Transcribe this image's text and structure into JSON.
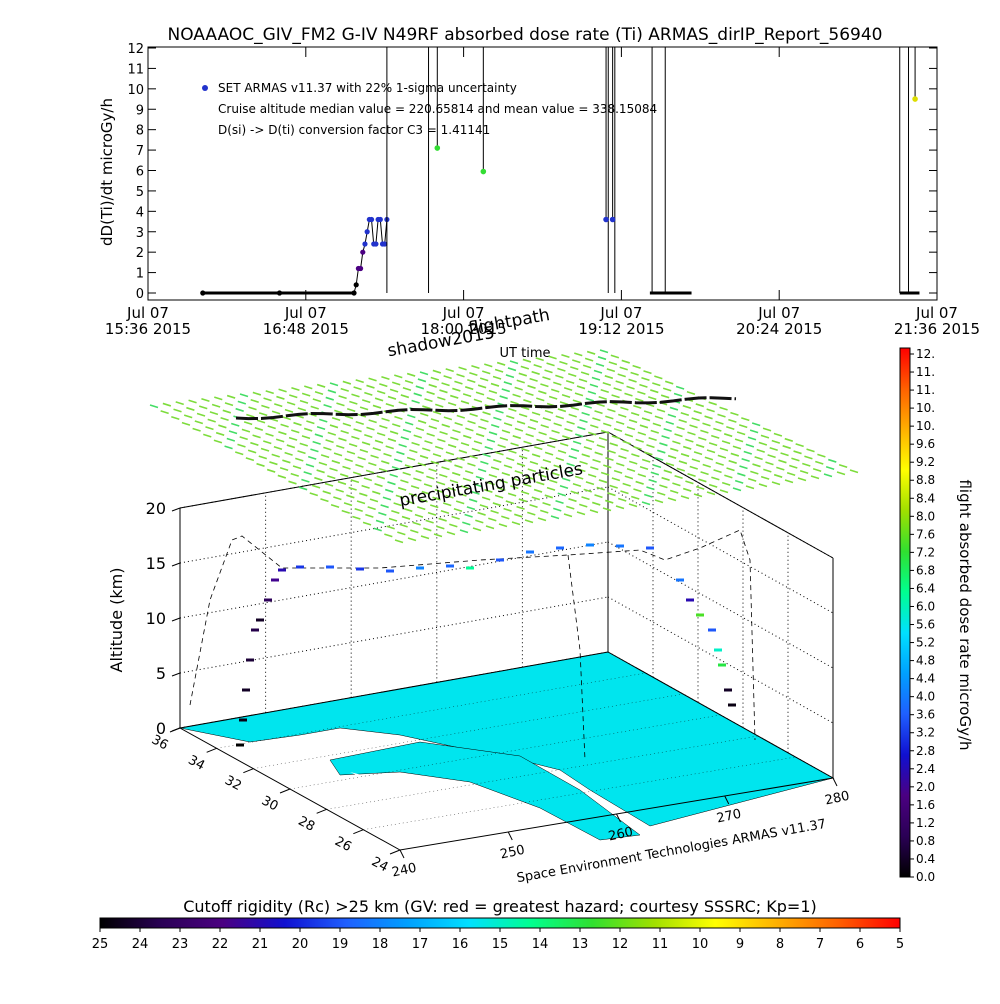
{
  "title": "NOAAAOC_GIV_FM2 G-IV    N49RF   absorbed dose rate (Ti) ARMAS_dirIP_Report_56940",
  "chart_data": [
    {
      "type": "line",
      "ylabel": "dD(Ti)/dt microGy/h",
      "xlabel": "UT time",
      "ylim": [
        0,
        12
      ],
      "yticks": [
        "0",
        "1",
        "2",
        "3",
        "4",
        "5",
        "6",
        "7",
        "8",
        "9",
        "10",
        "11",
        "12"
      ],
      "xticks": [
        {
          "t": 0,
          "l1": "Jul 07",
          "l2": "15:36 2015"
        },
        {
          "t": 72,
          "l1": "Jul 07",
          "l2": "16:48 2015"
        },
        {
          "t": 144,
          "l1": "Jul 07",
          "l2": "18:00 2015"
        },
        {
          "t": 216,
          "l1": "Jul 07",
          "l2": "19:12 2015"
        },
        {
          "t": 288,
          "l1": "Jul 07",
          "l2": "20:24 2015"
        },
        {
          "t": 360,
          "l1": "Jul 07",
          "l2": "21:36 2015"
        }
      ],
      "xlim_min": [
        0,
        360
      ],
      "legend": [
        "SET ARMAS v11.37 with 22% 1-sigma uncertainty",
        "Cruise altitude median value = 220.65814 and mean value = 338.15084",
        "D(si) -> D(ti) conversion factor C3 = 1.41141"
      ],
      "series_points": [
        [
          25,
          0
        ],
        [
          60,
          0
        ],
        [
          94,
          0
        ],
        [
          95,
          0.4
        ],
        [
          96,
          1.2
        ],
        [
          97,
          1.2
        ],
        [
          98,
          2.0
        ],
        [
          99,
          2.4
        ],
        [
          100,
          3.0
        ],
        [
          101,
          3.6
        ],
        [
          102,
          3.6
        ],
        [
          103,
          2.4
        ],
        [
          104,
          2.4
        ],
        [
          105,
          3.6
        ],
        [
          106,
          3.6
        ],
        [
          107,
          2.4
        ],
        [
          108,
          2.4
        ],
        [
          109,
          3.6
        ]
      ],
      "highlight_points": [
        {
          "t": 132,
          "y": 7.1,
          "color": "#33dd33"
        },
        {
          "t": 153,
          "y": 5.95,
          "color": "#33dd33"
        },
        {
          "t": 209,
          "y": 3.6,
          "color": "#2233cc"
        },
        {
          "t": 212,
          "y": 3.6,
          "color": "#2233cc"
        },
        {
          "t": 350,
          "y": 9.5,
          "color": "#dddd00"
        }
      ],
      "spike_times": [
        109,
        128,
        210,
        213,
        230,
        236,
        343,
        347
      ],
      "flat_segments": [
        [
          25,
          94
        ],
        [
          229,
          248
        ],
        [
          343,
          352
        ]
      ]
    },
    {
      "type": "scatter",
      "ylabel": "Altitude (km)",
      "zticks": [
        "0",
        "5",
        "10",
        "15",
        "20"
      ],
      "lat_ticks": [
        "36",
        "34",
        "32",
        "30",
        "28",
        "26",
        "24"
      ],
      "lon_ticks": [
        "240",
        "250",
        "260",
        "270",
        "280"
      ],
      "annotations": [
        "shadow2015",
        "flightpath",
        "precipitating particles"
      ],
      "footer": "Space Environment Technologies ARMAS v11.37"
    }
  ],
  "colorbar_right": {
    "label": "flight absorbed dose rate microGy/h",
    "ticks": [
      "12.",
      "11.",
      "11.",
      "10.",
      "10.",
      "9.6",
      "9.2",
      "8.8",
      "8.4",
      "8.0",
      "7.6",
      "7.2",
      "6.8",
      "6.4",
      "6.0",
      "5.6",
      "5.2",
      "4.8",
      "4.4",
      "4.0",
      "3.6",
      "3.2",
      "2.8",
      "2.4",
      "2.0",
      "1.6",
      "1.2",
      "0.8",
      "0.4",
      "0.0"
    ]
  },
  "colorbar_bottom": {
    "label": "Cutoff rigidity (Rc) >25 km (GV: red = greatest hazard; courtesy SSSRC; Kp=1)",
    "ticks": [
      "25",
      "24",
      "23",
      "22",
      "21",
      "20",
      "19",
      "18",
      "17",
      "16",
      "15",
      "14",
      "13",
      "12",
      "11",
      "10",
      "9",
      "8",
      "7",
      "6",
      "5"
    ]
  },
  "colors": {
    "rainbow": [
      "#000000",
      "#2a0055",
      "#4b0082",
      "#1010d0",
      "#1f5fff",
      "#00a0ff",
      "#00e0ff",
      "#00ff90",
      "#30e030",
      "#a0e000",
      "#ffff00",
      "#ffb000",
      "#ff6000",
      "#ff0000"
    ],
    "map": "#00e5ee",
    "particles": "#7ddc3c"
  }
}
